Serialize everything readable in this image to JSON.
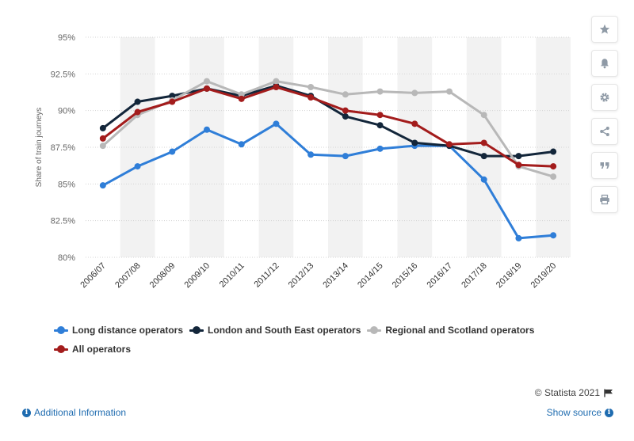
{
  "chart_data": {
    "type": "line",
    "title": "",
    "xlabel": "",
    "ylabel": "Share of train journeys",
    "categories": [
      "2006/07",
      "2007/08",
      "2008/09",
      "2009/10",
      "2010/11",
      "2011/12",
      "2012/13",
      "2013/14",
      "2014/15",
      "2015/16",
      "2016/17",
      "2017/18",
      "2018/19",
      "2019/20"
    ],
    "ylim": [
      80,
      95
    ],
    "yticks": [
      80,
      82.5,
      85,
      87.5,
      90,
      92.5,
      95
    ],
    "ytick_labels": [
      "80%",
      "82.5%",
      "85%",
      "87.5%",
      "90%",
      "92.5%",
      "95%"
    ],
    "grid": true,
    "legend_position": "bottom-left",
    "series": [
      {
        "name": "Long distance operators",
        "color": "#2f7ed8",
        "values": [
          84.9,
          86.2,
          87.2,
          88.7,
          87.7,
          89.1,
          87.0,
          86.9,
          87.4,
          87.6,
          87.6,
          85.3,
          81.3,
          81.5
        ]
      },
      {
        "name": "London and South East operators",
        "color": "#13263a",
        "values": [
          88.8,
          90.6,
          91.0,
          91.5,
          91.0,
          91.7,
          91.0,
          89.6,
          89.0,
          87.8,
          87.6,
          86.9,
          86.9,
          87.2
        ]
      },
      {
        "name": "Regional and Scotland operators",
        "color": "#b8b8b8",
        "values": [
          87.6,
          89.7,
          90.7,
          92.0,
          91.1,
          92.0,
          91.6,
          91.1,
          91.3,
          91.2,
          91.3,
          89.7,
          86.2,
          85.5
        ]
      },
      {
        "name": "All operators",
        "color": "#a31c1c",
        "values": [
          88.1,
          89.9,
          90.6,
          91.5,
          90.8,
          91.6,
          90.9,
          90.0,
          89.7,
          89.1,
          87.7,
          87.8,
          86.3,
          86.2
        ]
      }
    ]
  },
  "toolbar": {
    "icons": [
      "star-icon",
      "bell-icon",
      "gear-icon",
      "share-icon",
      "quote-icon",
      "print-icon"
    ]
  },
  "footer": {
    "credit": "© Statista 2021",
    "additional_info": "Additional Information",
    "show_source": "Show source"
  }
}
